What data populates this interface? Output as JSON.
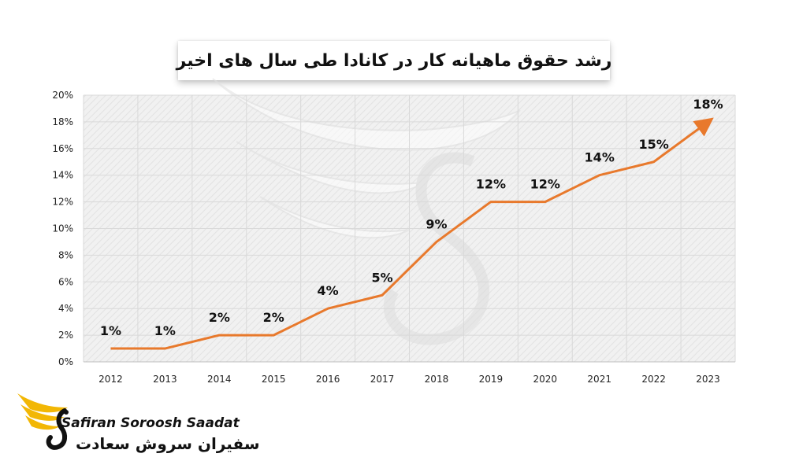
{
  "chart_data": {
    "type": "line",
    "title": "رشد حقوق ماهیانه کار در کانادا طی سال های اخیر",
    "categories": [
      "2012",
      "2013",
      "2014",
      "2015",
      "2016",
      "2017",
      "2018",
      "2019",
      "2020",
      "2021",
      "2022",
      "2023"
    ],
    "values": [
      1,
      1,
      2,
      2,
      4,
      5,
      9,
      12,
      12,
      14,
      15,
      18
    ],
    "data_labels": [
      "1%",
      "1%",
      "2%",
      "2%",
      "4%",
      "5%",
      "9%",
      "12%",
      "12%",
      "14%",
      "15%",
      "18%"
    ],
    "yticks": [
      "0%",
      "2%",
      "4%",
      "6%",
      "8%",
      "10%",
      "12%",
      "14%",
      "16%",
      "18%",
      "20%"
    ],
    "ylim": [
      0,
      20
    ],
    "xlabel": "",
    "ylabel": "",
    "grid": true,
    "line_color": "#E8792C",
    "arrow_end": true
  },
  "brand": {
    "name_en": "Safiran Soroosh Saadat",
    "name_fa": "سفیران سروش سعادت",
    "accent_color": "#F2B705"
  }
}
